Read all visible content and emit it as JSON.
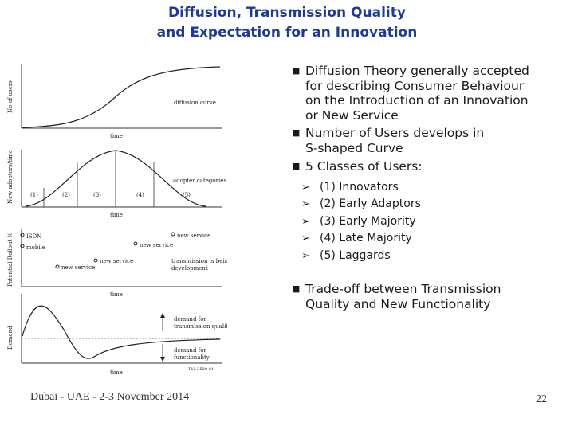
{
  "title": {
    "line1": "Diffusion, Transmission Quality",
    "line2": "and Expectation for an Innovation"
  },
  "bullets": [
    {
      "lines": [
        "Diffusion Theory generally accepted",
        "for describing Consumer Behaviour",
        "on the Introduction of an Innovation",
        "or New Service"
      ]
    },
    {
      "lines": [
        "Number of Users develops in",
        "S‑shaped Curve"
      ]
    },
    {
      "lines": [
        "5 Classes of Users:"
      ]
    },
    {
      "lines": [
        "Trade-off between Transmission",
        "Quality and New Functionality"
      ]
    }
  ],
  "user_classes": [
    "(1) Innovators",
    "(2) Early Adaptors",
    "(3) Early Majority",
    "(4) Late Majority",
    "(5) Laggards"
  ],
  "figure": {
    "panel1": {
      "ylabel": "No of users",
      "curve_label": "diffusion curve",
      "xlabel": "time"
    },
    "panel2": {
      "ylabel": "New adopters/time",
      "categories_label": "adopter categories",
      "xlabel": "time",
      "classes": [
        "(1)",
        "(2)",
        "(3)",
        "(4)",
        "(5)"
      ]
    },
    "panel3": {
      "ylabel": "Potential Rollout %",
      "xlabel": "time",
      "labels": [
        "ISDN",
        "mobile",
        "new service",
        "new service",
        "new service",
        "transmission is being",
        "development"
      ]
    },
    "panel4": {
      "ylabel": "Demand",
      "xlabel": "time",
      "labels": [
        "demand for",
        "transmission quality",
        "demand for",
        "functionality"
      ],
      "ref": "T12 3520 01"
    }
  },
  "footer": {
    "left": "Dubai - UAE - 2-3 November 2014",
    "page": "22"
  },
  "icons": {
    "bullet": "square-bullet-icon",
    "sub_bullet": "arrow-bullet-icon"
  },
  "colors": {
    "title": "#1f3a93"
  }
}
